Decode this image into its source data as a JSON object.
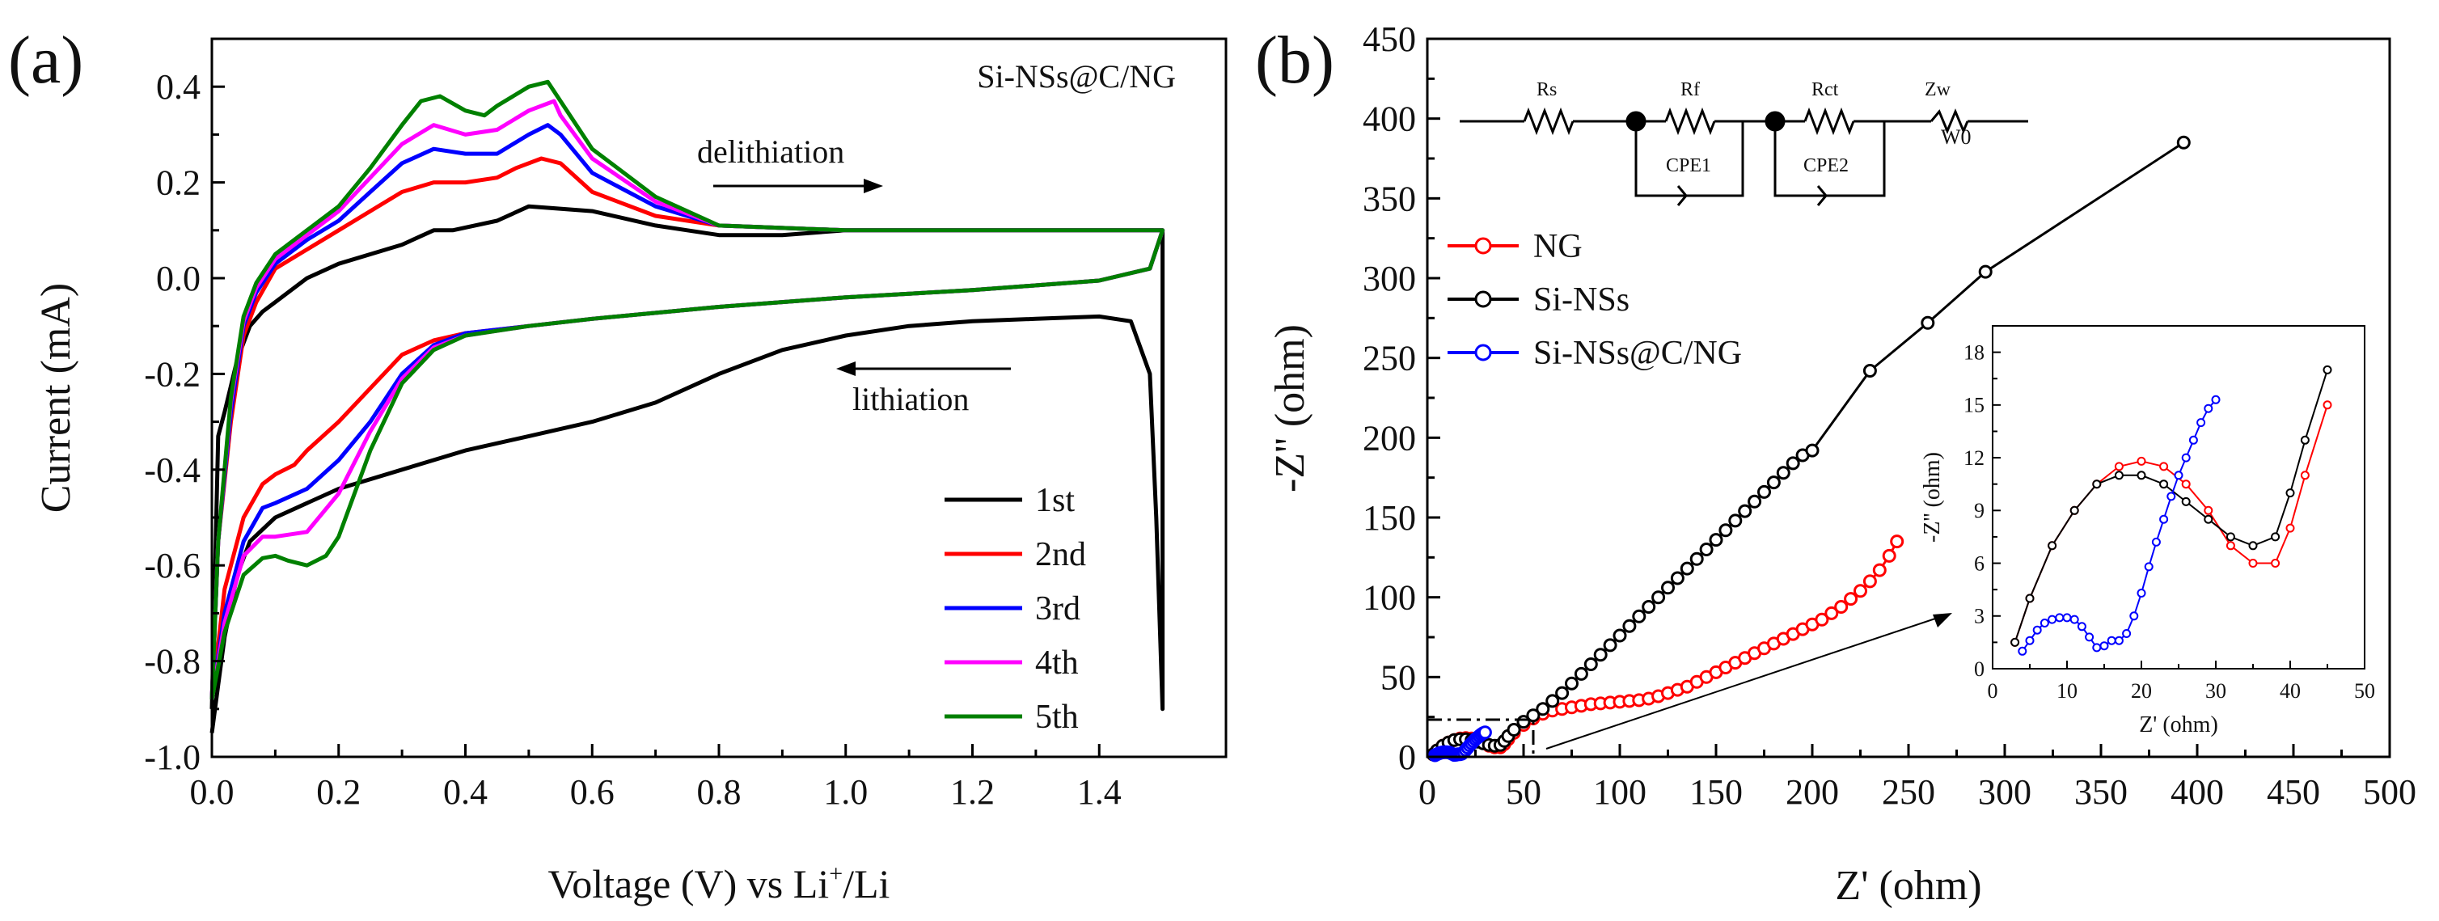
{
  "chart_data": [
    {
      "type": "line",
      "panel_label": "(a)",
      "title": "Si-NSs@C/NG",
      "xlabel": "Voltage (V) vs Li",
      "xlabel_sup": "+",
      "xlabel_suffix": "/Li",
      "ylabel": "Current (mA)",
      "xlim": [
        0.0,
        1.6
      ],
      "ylim": [
        -1.0,
        0.5
      ],
      "xticks": [
        "0.0",
        "0.2",
        "0.4",
        "0.6",
        "0.8",
        "1.0",
        "1.2",
        "1.4"
      ],
      "yticks": [
        "-1.0",
        "-0.8",
        "-0.6",
        "-0.4",
        "-0.2",
        "0.0",
        "0.2",
        "0.4"
      ],
      "annotations": [
        {
          "text": "delithiation",
          "arrow": "right"
        },
        {
          "text": "lithiation",
          "arrow": "left"
        }
      ],
      "legend_position": "bottom-right",
      "series": [
        {
          "name": "1st",
          "color": "#000000",
          "x": [
            0.0,
            0.01,
            0.02,
            0.04,
            0.06,
            0.1,
            0.15,
            0.2,
            0.3,
            0.4,
            0.5,
            0.6,
            0.7,
            0.8,
            0.9,
            1.0,
            1.1,
            1.2,
            1.3,
            1.4,
            1.45,
            1.48,
            1.49,
            1.5,
            1.5,
            1.49,
            1.47,
            1.44,
            1.4,
            1.35,
            1.3,
            1.2,
            1.1,
            1.0,
            0.9,
            0.8,
            0.75,
            0.7,
            0.6,
            0.5,
            0.45,
            0.38,
            0.35,
            0.3,
            0.2,
            0.15,
            0.1,
            0.08,
            0.06,
            0.04,
            0.02,
            0.01,
            0.0
          ],
          "y": [
            -0.95,
            -0.85,
            -0.75,
            -0.62,
            -0.55,
            -0.5,
            -0.47,
            -0.44,
            -0.4,
            -0.36,
            -0.33,
            -0.3,
            -0.26,
            -0.2,
            -0.15,
            -0.12,
            -0.1,
            -0.09,
            -0.085,
            -0.08,
            -0.09,
            -0.2,
            -0.5,
            -0.9,
            0.1,
            0.1,
            0.1,
            0.1,
            0.1,
            0.1,
            0.1,
            0.1,
            0.1,
            0.1,
            0.09,
            0.09,
            0.1,
            0.11,
            0.14,
            0.15,
            0.12,
            0.1,
            0.1,
            0.07,
            0.03,
            0.0,
            -0.05,
            -0.07,
            -0.1,
            -0.17,
            -0.28,
            -0.33,
            -0.9
          ]
        },
        {
          "name": "2nd",
          "color": "#ff0000",
          "x": [
            0.0,
            0.02,
            0.05,
            0.08,
            0.1,
            0.13,
            0.15,
            0.2,
            0.25,
            0.3,
            0.35,
            0.4,
            0.5,
            0.6,
            0.8,
            1.0,
            1.2,
            1.4,
            1.48,
            1.5,
            1.48,
            1.4,
            1.2,
            1.0,
            0.8,
            0.7,
            0.6,
            0.55,
            0.52,
            0.48,
            0.45,
            0.4,
            0.35,
            0.3,
            0.25,
            0.2,
            0.15,
            0.1,
            0.07,
            0.05,
            0.03,
            0.01,
            0.0
          ],
          "y": [
            -0.88,
            -0.65,
            -0.5,
            -0.43,
            -0.41,
            -0.39,
            -0.36,
            -0.3,
            -0.23,
            -0.16,
            -0.13,
            -0.115,
            -0.1,
            -0.085,
            -0.06,
            -0.04,
            -0.025,
            -0.005,
            0.02,
            0.1,
            0.1,
            0.1,
            0.1,
            0.1,
            0.11,
            0.13,
            0.18,
            0.24,
            0.25,
            0.23,
            0.21,
            0.2,
            0.2,
            0.18,
            0.14,
            0.1,
            0.06,
            0.02,
            -0.05,
            -0.12,
            -0.3,
            -0.55,
            -0.88
          ]
        },
        {
          "name": "3rd",
          "color": "#0000ff",
          "x": [
            0.0,
            0.02,
            0.05,
            0.08,
            0.1,
            0.15,
            0.2,
            0.25,
            0.3,
            0.35,
            0.4,
            0.5,
            0.6,
            0.8,
            1.0,
            1.2,
            1.4,
            1.48,
            1.5,
            1.48,
            1.4,
            1.2,
            1.0,
            0.8,
            0.7,
            0.6,
            0.55,
            0.53,
            0.5,
            0.45,
            0.4,
            0.35,
            0.3,
            0.25,
            0.2,
            0.15,
            0.1,
            0.07,
            0.05,
            0.03,
            0.01,
            0.0
          ],
          "y": [
            -0.88,
            -0.7,
            -0.55,
            -0.48,
            -0.47,
            -0.44,
            -0.38,
            -0.3,
            -0.2,
            -0.14,
            -0.115,
            -0.1,
            -0.085,
            -0.06,
            -0.04,
            -0.025,
            -0.005,
            0.02,
            0.1,
            0.1,
            0.1,
            0.1,
            0.1,
            0.11,
            0.15,
            0.22,
            0.3,
            0.32,
            0.3,
            0.26,
            0.26,
            0.27,
            0.24,
            0.18,
            0.12,
            0.08,
            0.03,
            -0.03,
            -0.1,
            -0.28,
            -0.55,
            -0.88
          ]
        },
        {
          "name": "4th",
          "color": "#ff00ff",
          "x": [
            0.0,
            0.02,
            0.05,
            0.08,
            0.1,
            0.15,
            0.2,
            0.25,
            0.3,
            0.35,
            0.4,
            0.5,
            0.6,
            0.8,
            1.0,
            1.2,
            1.4,
            1.48,
            1.5,
            1.48,
            1.4,
            1.2,
            1.0,
            0.8,
            0.7,
            0.6,
            0.55,
            0.54,
            0.5,
            0.45,
            0.4,
            0.35,
            0.3,
            0.25,
            0.2,
            0.15,
            0.1,
            0.07,
            0.05,
            0.03,
            0.01,
            0.0
          ],
          "y": [
            -0.88,
            -0.72,
            -0.58,
            -0.54,
            -0.54,
            -0.53,
            -0.45,
            -0.32,
            -0.21,
            -0.145,
            -0.12,
            -0.1,
            -0.085,
            -0.06,
            -0.04,
            -0.025,
            -0.005,
            0.02,
            0.1,
            0.1,
            0.1,
            0.1,
            0.1,
            0.11,
            0.16,
            0.25,
            0.34,
            0.37,
            0.35,
            0.31,
            0.3,
            0.32,
            0.28,
            0.21,
            0.14,
            0.09,
            0.04,
            -0.02,
            -0.09,
            -0.26,
            -0.55,
            -0.88
          ]
        },
        {
          "name": "5th",
          "color": "#008000",
          "x": [
            0.0,
            0.02,
            0.05,
            0.08,
            0.1,
            0.12,
            0.15,
            0.18,
            0.2,
            0.25,
            0.3,
            0.35,
            0.4,
            0.5,
            0.6,
            0.8,
            1.0,
            1.2,
            1.4,
            1.48,
            1.5,
            1.48,
            1.4,
            1.2,
            1.0,
            0.8,
            0.7,
            0.6,
            0.55,
            0.53,
            0.5,
            0.45,
            0.43,
            0.4,
            0.36,
            0.33,
            0.3,
            0.25,
            0.2,
            0.15,
            0.1,
            0.07,
            0.05,
            0.03,
            0.01,
            0.0
          ],
          "y": [
            -0.88,
            -0.74,
            -0.62,
            -0.585,
            -0.58,
            -0.59,
            -0.6,
            -0.58,
            -0.54,
            -0.36,
            -0.22,
            -0.15,
            -0.12,
            -0.1,
            -0.085,
            -0.06,
            -0.04,
            -0.025,
            -0.005,
            0.02,
            0.1,
            0.1,
            0.1,
            0.1,
            0.1,
            0.11,
            0.17,
            0.27,
            0.37,
            0.41,
            0.4,
            0.36,
            0.34,
            0.35,
            0.38,
            0.37,
            0.32,
            0.23,
            0.15,
            0.1,
            0.05,
            -0.01,
            -0.08,
            -0.25,
            -0.55,
            -0.88
          ]
        }
      ]
    },
    {
      "type": "scatter",
      "panel_label": "(b)",
      "xlabel": "Z' (ohm)",
      "ylabel": "-Z'' (ohm)",
      "xlim": [
        0,
        500
      ],
      "ylim": [
        0,
        450
      ],
      "xticks": [
        "0",
        "50",
        "100",
        "150",
        "200",
        "250",
        "300",
        "350",
        "400",
        "450",
        "500"
      ],
      "yticks": [
        "0",
        "50",
        "100",
        "150",
        "200",
        "250",
        "300",
        "350",
        "400",
        "450"
      ],
      "circuit_labels": [
        "Rs",
        "Rf",
        "Rct",
        "Zw",
        "W0",
        "CPE1",
        "CPE2"
      ],
      "legend_position": "upper-left",
      "series": [
        {
          "name": "NG",
          "color": "#ff0000",
          "x": [
            3,
            5,
            8,
            11,
            14,
            17,
            20,
            23,
            26,
            29,
            32,
            35,
            38,
            40,
            42,
            45,
            50,
            55,
            60,
            65,
            70,
            75,
            80,
            85,
            90,
            95,
            100,
            105,
            110,
            115,
            120,
            125,
            130,
            135,
            140,
            145,
            150,
            155,
            160,
            165,
            170,
            175,
            180,
            185,
            190,
            195,
            200,
            205,
            210,
            215,
            220,
            225,
            230,
            235,
            240,
            244
          ],
          "y": [
            1.5,
            4,
            7,
            9,
            10.5,
            11.5,
            11.8,
            11.5,
            10.5,
            9,
            7,
            6,
            6,
            8,
            11,
            15,
            20,
            24,
            27,
            29,
            30,
            31,
            32,
            33,
            33.5,
            34,
            34.5,
            35,
            35.5,
            36.5,
            38,
            40,
            42,
            44,
            47,
            50,
            53,
            56,
            59,
            62,
            65,
            68,
            71,
            74,
            77,
            80,
            83,
            86,
            90,
            94,
            99,
            104,
            110,
            117,
            126,
            135
          ]
        },
        {
          "name": "Si-NSs",
          "color": "#000000",
          "x": [
            3,
            5,
            8,
            11,
            14,
            17,
            20,
            23,
            26,
            29,
            32,
            35,
            38,
            40,
            42,
            45,
            50,
            55,
            60,
            65,
            70,
            75,
            80,
            85,
            90,
            95,
            100,
            105,
            110,
            115,
            120,
            125,
            130,
            135,
            140,
            145,
            150,
            155,
            160,
            165,
            170,
            175,
            180,
            185,
            190,
            195,
            200,
            230,
            260,
            290,
            393
          ],
          "y": [
            1.5,
            4,
            7,
            9,
            10.5,
            11,
            11,
            10.5,
            9.5,
            8.5,
            7.5,
            7,
            7.5,
            10,
            13,
            17,
            22,
            26,
            30,
            35,
            40,
            46,
            52,
            58,
            64,
            70,
            76,
            82,
            88,
            94,
            100,
            106,
            112,
            118,
            124,
            130,
            136,
            142,
            148,
            154,
            160,
            166,
            172,
            178,
            184,
            189,
            192,
            242,
            272,
            304,
            385
          ]
        },
        {
          "name": "Si-NSs@C/NG",
          "color": "#0000ff",
          "x": [
            4,
            5,
            6,
            7,
            8,
            9,
            10,
            11,
            12,
            13,
            14,
            15,
            16,
            17,
            18,
            19,
            20,
            21,
            22,
            23,
            24,
            25,
            26,
            27,
            28,
            29,
            30
          ],
          "y": [
            1.0,
            1.6,
            2.2,
            2.6,
            2.8,
            2.9,
            2.9,
            2.8,
            2.4,
            1.8,
            1.2,
            1.3,
            1.6,
            1.6,
            2.0,
            3.0,
            4.3,
            5.8,
            7.2,
            8.5,
            9.8,
            11.0,
            12.0,
            13.0,
            14.0,
            14.8,
            15.3
          ]
        }
      ],
      "inset": {
        "xlabel": "Z' (ohm)",
        "ylabel": "-Z'' (ohm)",
        "xlim": [
          0,
          50
        ],
        "ylim": [
          0,
          19.5
        ],
        "xticks": [
          "0",
          "10",
          "20",
          "30",
          "40",
          "50"
        ],
        "yticks": [
          "0",
          "3",
          "6",
          "9",
          "12",
          "15",
          "18"
        ]
      }
    }
  ]
}
